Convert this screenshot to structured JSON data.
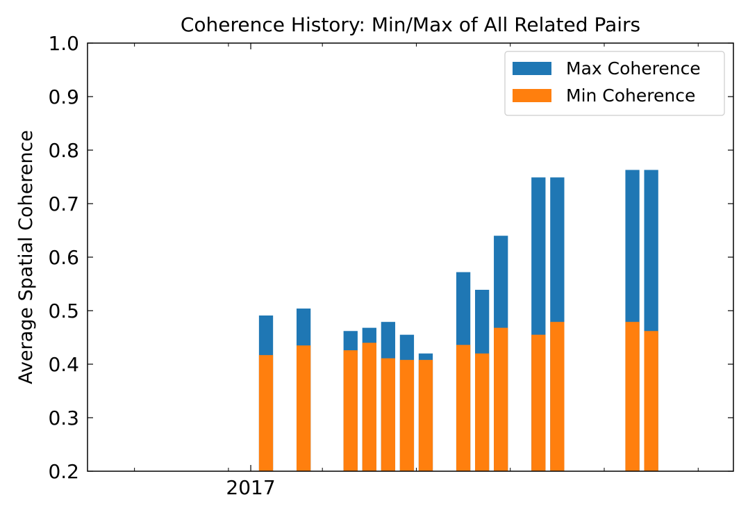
{
  "chart_data": {
    "type": "bar",
    "title": "Coherence History: Min/Max of All Related Pairs",
    "xlabel": "",
    "ylabel": "Average Spatial Coherence",
    "ylim": [
      0.2,
      1.0
    ],
    "yticks": [
      "0.2",
      "0.3",
      "0.4",
      "0.5",
      "0.6",
      "0.7",
      "0.8",
      "0.9",
      "1.0"
    ],
    "xtick_labels": [
      {
        "label": "2017",
        "x": 200
      }
    ],
    "xlim": [
      -0.5,
      13.25
    ],
    "minor_xticks": [
      0.5,
      2.5,
      4.5,
      6.5,
      8.5,
      10.5,
      12.5
    ],
    "major_xticks": [
      2.975
    ],
    "bar_width": 0.3,
    "grid": false,
    "legend_position": "upper right",
    "series": [
      {
        "name": "Max Coherence",
        "color": "#1f77b4",
        "x": [
          3.3,
          4.1,
          5.1,
          5.5,
          5.9,
          6.3,
          6.7,
          7.5,
          7.9,
          8.3,
          9.1,
          9.5,
          11.1,
          11.5
        ],
        "values": [
          0.491,
          0.504,
          0.462,
          0.468,
          0.479,
          0.455,
          0.42,
          0.572,
          0.539,
          0.64,
          0.749,
          0.749,
          0.763,
          0.763
        ]
      },
      {
        "name": "Min Coherence",
        "color": "#ff7f0e",
        "x": [
          3.3,
          4.1,
          5.1,
          5.5,
          5.9,
          6.3,
          6.7,
          7.5,
          7.9,
          8.3,
          9.1,
          9.5,
          11.1,
          11.5
        ],
        "values": [
          0.417,
          0.435,
          0.426,
          0.44,
          0.411,
          0.408,
          0.408,
          0.436,
          0.42,
          0.468,
          0.455,
          0.479,
          0.479,
          0.462
        ]
      }
    ]
  }
}
